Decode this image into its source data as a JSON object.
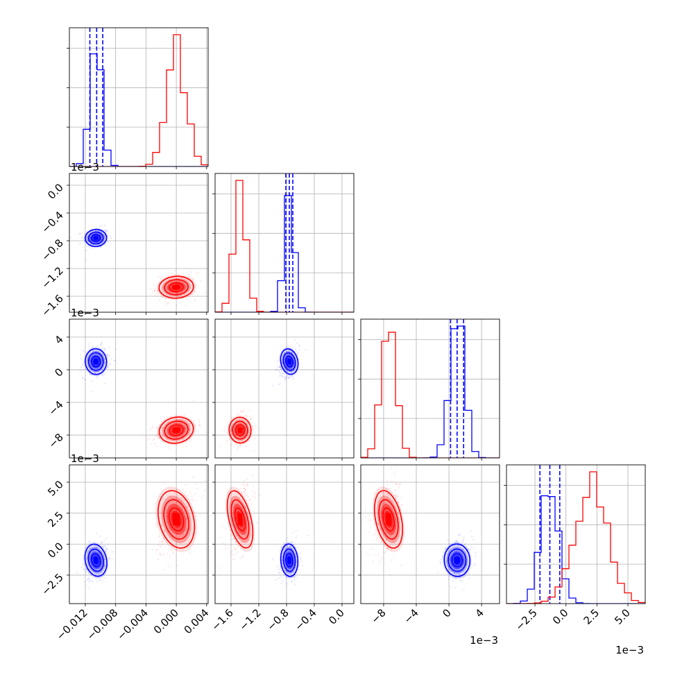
{
  "figure": {
    "type": "corner_plot",
    "background": "#ffffff",
    "series_colors": {
      "blue": "#0000ff",
      "red": "#ff0000"
    },
    "grid": true
  },
  "chart_data": {
    "type": "scatter",
    "variables": [
      {
        "ticks": [
          -0.012,
          -0.008,
          -0.004,
          0.0,
          0.004
        ],
        "tick_labels": [
          "−0.012",
          "−0.008",
          "−0.004",
          "0.000",
          "0.004"
        ],
        "range": [
          -0.0141,
          0.0042
        ],
        "offset_label": ""
      },
      {
        "ticks": [
          -1.6,
          -1.2,
          -0.8,
          -0.4,
          0.0
        ],
        "tick_labels": [
          "−1.6",
          "−1.2",
          "−0.8",
          "−0.4",
          "0.0"
        ],
        "range": [
          -1.83,
          0.17
        ],
        "offset_label": "1e−3"
      },
      {
        "ticks": [
          -8,
          -4,
          0,
          4
        ],
        "tick_labels": [
          "−8",
          "−4",
          "0",
          "4"
        ],
        "range": [
          -10.8,
          6.2
        ],
        "offset_label": "1e−3"
      },
      {
        "ticks": [
          -2.5,
          0.0,
          2.5,
          5.0
        ],
        "tick_labels": [
          "−2.5",
          "0.0",
          "2.5",
          "5.0"
        ],
        "range": [
          -4.8,
          6.4
        ],
        "offset_label": "1e−3"
      }
    ],
    "series": [
      {
        "color": "#0000ff",
        "mean": [
          -0.0106,
          -0.76,
          1.0,
          -1.3
        ],
        "sd": [
          0.0008,
          0.07,
          0.9,
          0.75
        ],
        "quantiles_dashed": [
          [
            -0.0114,
            -0.0105,
            -0.0097
          ],
          [
            -0.81,
            -0.76,
            -0.71
          ],
          [
            0.2,
            1.0,
            1.8
          ],
          [
            -2.1,
            -1.3,
            -0.5
          ]
        ]
      },
      {
        "color": "#ff0000",
        "mean": [
          0.0,
          -1.47,
          -7.4,
          2.0
        ],
        "sd": [
          0.0013,
          0.09,
          0.9,
          1.35
        ]
      }
    ]
  }
}
